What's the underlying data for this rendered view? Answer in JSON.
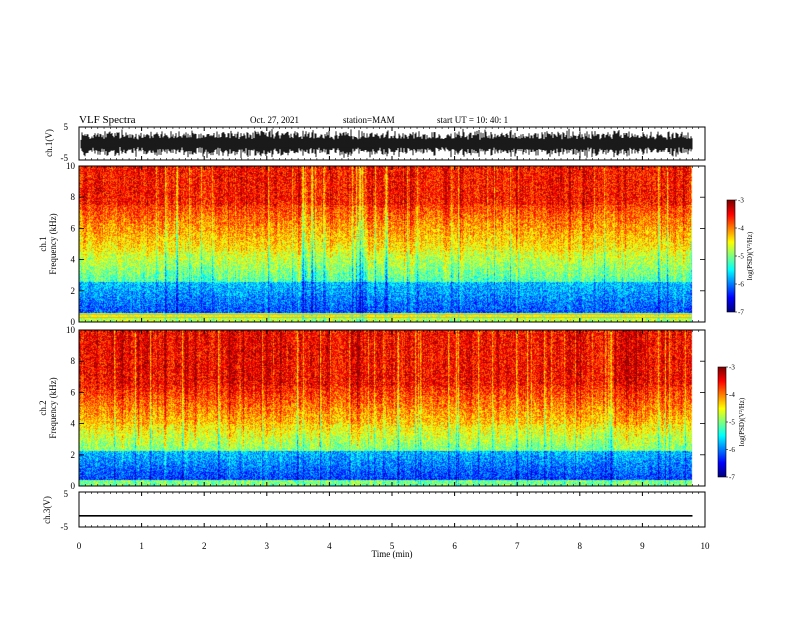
{
  "header": {
    "title": "VLF Spectra",
    "date": "Oct. 27, 2021",
    "station": "station=MAM",
    "start": "start  UT  =    10: 40: 1"
  },
  "chart_data": [
    {
      "type": "line",
      "name": "ch1-waveform",
      "ylabel": "ch.1(V)",
      "ylim": [
        -5,
        5
      ],
      "y_ticks": [
        "5",
        "-5"
      ],
      "xlim": [
        0,
        10
      ]
    },
    {
      "type": "heatmap",
      "name": "ch1-spectrogram",
      "ylabel_line1": "ch.1",
      "ylabel_line2": "Frequency  (kHz)",
      "ylim": [
        0,
        10
      ],
      "y_ticks": [
        "0",
        "2",
        "4",
        "6",
        "8",
        "10"
      ],
      "xlim": [
        0,
        10
      ],
      "data_end_min": 9.8,
      "colorbar": {
        "label": "log(PSD)(V²/Hz)",
        "range": [
          -7,
          -3
        ],
        "ticks": [
          "-3",
          "-4",
          "-5",
          "-6",
          "-7"
        ]
      }
    },
    {
      "type": "heatmap",
      "name": "ch2-spectrogram",
      "ylabel_line1": "ch.2",
      "ylabel_line2": "Frequency  (kHz)",
      "ylim": [
        0,
        10
      ],
      "y_ticks": [
        "0",
        "2",
        "4",
        "6",
        "8",
        "10"
      ],
      "xlim": [
        0,
        10
      ],
      "data_end_min": 9.8,
      "colorbar": {
        "label": "log(PSD)(V²/Hz)",
        "range": [
          -7,
          -3
        ],
        "ticks": [
          "-3",
          "-4",
          "-5",
          "-6",
          "-7"
        ]
      }
    },
    {
      "type": "line",
      "name": "ch3-waveform",
      "ylabel": "ch.3(V)",
      "ylim": [
        -5,
        5
      ],
      "y_ticks": [
        "5",
        "-5"
      ],
      "xlim": [
        0,
        10
      ],
      "series": [
        {
          "x": [
            0,
            9.8
          ],
          "y": [
            -1.8,
            -1.8
          ]
        }
      ]
    }
  ],
  "x_axis": {
    "label": "Time  (min)",
    "ticks": [
      "0",
      "1",
      "2",
      "3",
      "4",
      "5",
      "6",
      "7",
      "8",
      "9",
      "10"
    ]
  }
}
